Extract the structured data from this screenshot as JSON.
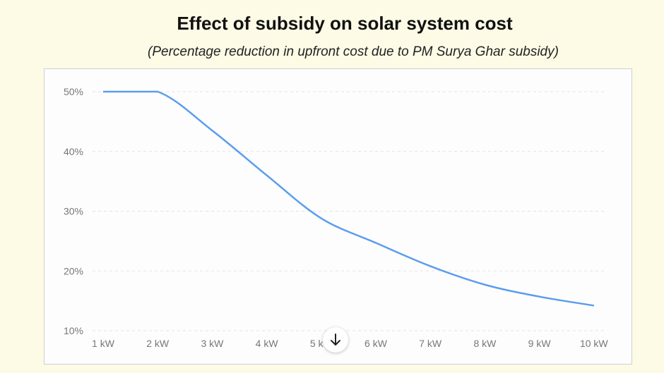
{
  "chart_data": {
    "type": "line",
    "title": "Effect of subsidy on solar system cost",
    "subtitle": "(Percentage reduction in upfront cost due to PM Surya Ghar subsidy)",
    "xlabel": "",
    "ylabel": "",
    "categories": [
      "1 kW",
      "2 kW",
      "3 kW",
      "4 kW",
      "5 kW",
      "6 kW",
      "7 kW",
      "8 kW",
      "9 kW",
      "10 kW"
    ],
    "x": [
      1,
      2,
      3,
      4,
      5,
      6,
      7,
      8,
      9,
      10
    ],
    "series": [
      {
        "values": [
          50,
          50,
          43.5,
          36,
          28.8,
          24.7,
          20.8,
          17.7,
          15.7,
          14.2
        ]
      }
    ],
    "yticks": [
      "10%",
      "20%",
      "30%",
      "40%",
      "50%"
    ],
    "ytick_values": [
      10,
      20,
      30,
      40,
      50
    ],
    "ylim": [
      10,
      50
    ],
    "grid": true,
    "line_color": "#5b9ded"
  },
  "scroll_button": {
    "icon": "arrow-down-icon"
  }
}
